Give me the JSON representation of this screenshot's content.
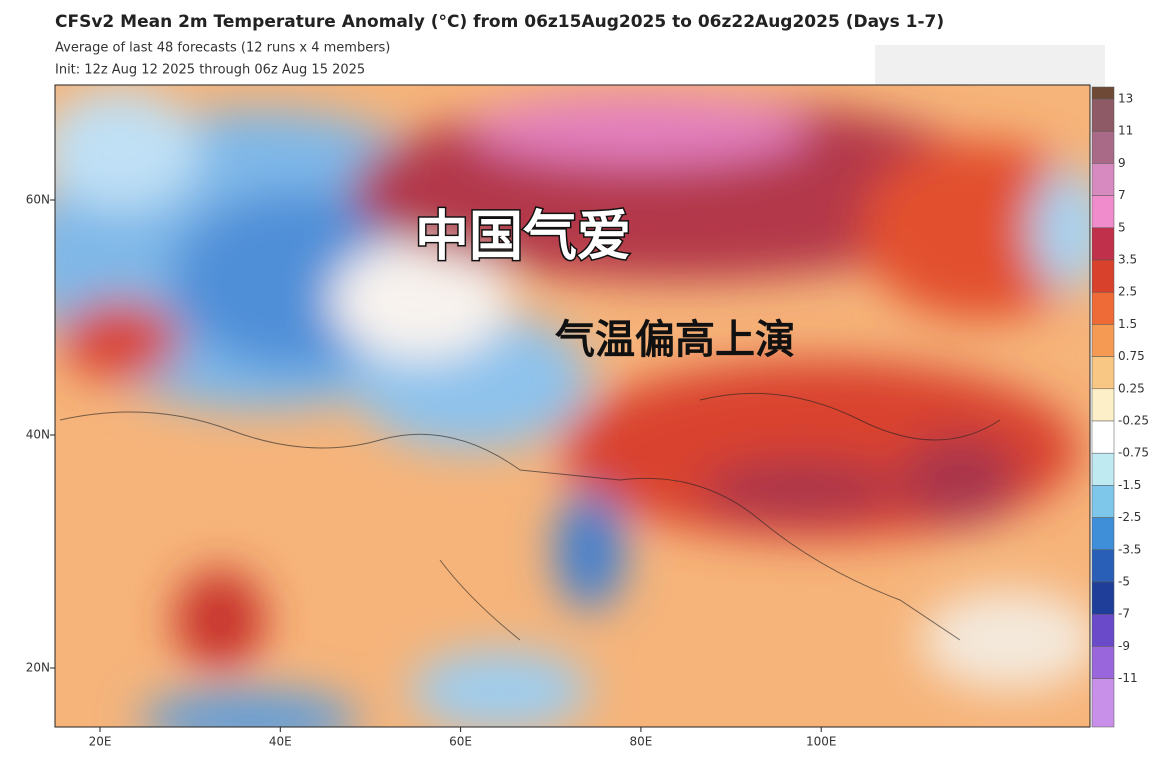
{
  "header": {
    "title": "CFSv2 Mean 2m Temperature Anomaly (°C) from 06z15Aug2025 to 06z22Aug2025 (Days 1-7)",
    "subtitle": "Average of last 48 forecasts (12 runs x 4 members)",
    "init": "Init: 12z Aug 12 2025 through 06z Aug 15 2025"
  },
  "overlay": {
    "headline": "中国气爱",
    "caption": "气温偏高上演"
  },
  "axes": {
    "lat_labels": [
      "60N",
      "40N",
      "20N"
    ],
    "lon_labels": [
      "20E",
      "40E",
      "60E",
      "80E",
      "100E"
    ]
  },
  "colorbar": {
    "labels": [
      "13",
      "11",
      "9",
      "7",
      "5",
      "3.5",
      "2.5",
      "1.5",
      "0.75",
      "0.25",
      "-0.25",
      "-0.75",
      "-1.5",
      "-2.5",
      "-3.5",
      "-5",
      "-7",
      "-9",
      "-11"
    ]
  }
}
